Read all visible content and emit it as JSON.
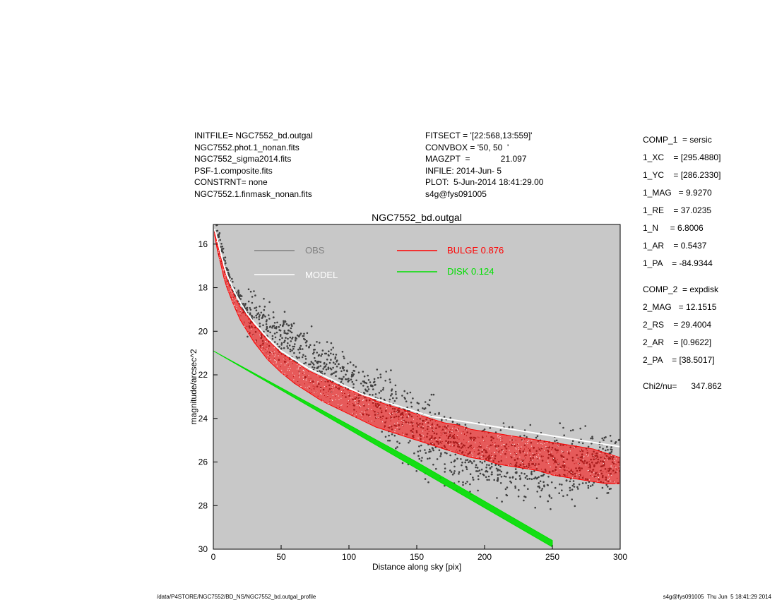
{
  "header_left": [
    "INITFILE= NGC7552_bd.outgal",
    "NGC7552.phot.1_nonan.fits",
    "NGC7552_sigma2014.fits",
    "PSF-1.composite.fits",
    "CONSTRNT= none",
    "NGC7552.1.finmask_nonan.fits"
  ],
  "header_mid": [
    "FITSECT = '[22:568,13:559]'",
    "CONVBOX = '50, 50  '",
    "MAGZPT  =             21.097",
    "INFILE: 2014-Jun- 5",
    "PLOT:  5-Jun-2014 18:41:29.00",
    "s4g@fys091005"
  ],
  "components": [
    "COMP_1  = sersic",
    "1_XC    = [295.4880]",
    "1_YC    = [286.2330]",
    "1_MAG   = 9.9270",
    "1_RE    = 37.0235",
    "1_N     = 6.8006",
    "1_AR    = 0.5437",
    "1_PA    = -84.9344",
    "COMP_2  = expdisk",
    "2_MAG   = 12.1515",
    "2_RS    = 29.4004",
    "2_AR    = [0.9622]",
    "2_PA    = [38.5017]",
    "Chi2/nu=      347.862"
  ],
  "footer_left": "/data/P4STORE/NGC7552/BD_NS/NGC7552_bd.outgal_profile",
  "footer_right": "s4g@fys091005  Thu Jun  5 18:41:29 2014",
  "chart_data": {
    "type": "scatter",
    "title": "NGC7552_bd.outgal",
    "xlabel": "Distance along sky [pix]",
    "ylabel": "magnitude/arcsec^2",
    "xlim": [
      0,
      300
    ],
    "ylim": [
      30,
      15.1
    ],
    "y_inverted": true,
    "xticks": [
      0,
      50,
      100,
      150,
      200,
      250,
      300
    ],
    "yticks": [
      16,
      18,
      20,
      22,
      24,
      26,
      28,
      30
    ],
    "background": "#c8c8c8",
    "legend": [
      {
        "name": "OBS",
        "color": "#808080",
        "text_color": "#808080"
      },
      {
        "name": "MODEL",
        "color": "#ffffff",
        "text_color": "#ffffff"
      },
      {
        "name": "BULGE  0.876",
        "color": "#ff0000",
        "text_color": "#ff0000"
      },
      {
        "name": "DISK  0.124",
        "color": "#00e000",
        "text_color": "#00e000"
      }
    ],
    "series": [
      {
        "name": "OBS",
        "color": "#404040",
        "x": [
          1,
          3,
          5,
          8,
          10,
          15,
          20,
          25,
          30,
          40,
          50,
          60,
          70,
          80,
          90,
          100,
          110,
          120,
          130,
          140,
          150,
          160,
          170,
          180,
          190,
          200,
          210,
          220,
          230,
          240,
          250,
          260,
          270,
          280,
          290,
          300
        ],
        "y": [
          15.2,
          15.4,
          15.9,
          16.8,
          17.3,
          18.0,
          18.6,
          19.0,
          19.4,
          19.8,
          20.2,
          20.6,
          21.0,
          21.4,
          21.8,
          22.2,
          22.6,
          23.0,
          23.5,
          24.0,
          24.5,
          24.9,
          25.2,
          25.5,
          25.7,
          25.9,
          26.0,
          26.1,
          26.2,
          26.3,
          26.3,
          26.3,
          26.2,
          26.1,
          25.9,
          25.8
        ]
      },
      {
        "name": "MODEL",
        "color": "#ffffff",
        "x": [
          1,
          3,
          5,
          8,
          10,
          15,
          20,
          25,
          30,
          40,
          50,
          60,
          70,
          80,
          90,
          100,
          110,
          120,
          130,
          140,
          150,
          160,
          170,
          180,
          190,
          200,
          210,
          220,
          230,
          240,
          250,
          260,
          270,
          280,
          290,
          300
        ],
        "y": [
          15.3,
          15.8,
          16.3,
          17.0,
          17.4,
          18.1,
          18.7,
          19.2,
          19.6,
          20.3,
          20.9,
          21.3,
          21.7,
          22.0,
          22.3,
          22.6,
          22.9,
          23.1,
          23.3,
          23.5,
          23.7,
          23.9,
          24.0,
          24.1,
          24.2,
          24.3,
          24.4,
          24.5,
          24.6,
          24.7,
          24.8,
          24.9,
          25.0,
          25.1,
          25.2,
          25.3
        ]
      },
      {
        "name": "BULGE  0.876",
        "color": "#ff0000",
        "x": [
          1,
          3,
          5,
          8,
          10,
          15,
          20,
          25,
          30,
          40,
          50,
          60,
          70,
          80,
          90,
          100,
          110,
          120,
          130,
          140,
          150,
          160,
          170,
          180,
          190,
          200,
          210,
          220,
          230,
          240,
          250,
          260,
          270,
          280,
          290,
          300
        ],
        "y_upper": [
          15.4,
          16.0,
          16.5,
          17.2,
          17.6,
          18.3,
          18.9,
          19.3,
          19.7,
          20.4,
          21.0,
          21.4,
          21.8,
          22.1,
          22.4,
          22.7,
          22.9,
          23.2,
          23.4,
          23.6,
          23.8,
          24.0,
          24.2,
          24.3,
          24.5,
          24.6,
          24.7,
          24.8,
          24.9,
          25.0,
          25.1,
          25.2,
          25.3,
          25.4,
          25.6,
          25.8
        ],
        "y_lower": [
          15.6,
          16.3,
          16.8,
          17.6,
          18.0,
          18.8,
          19.5,
          20.0,
          20.5,
          21.3,
          21.9,
          22.4,
          22.8,
          23.2,
          23.5,
          23.8,
          24.1,
          24.4,
          24.6,
          24.8,
          25.0,
          25.2,
          25.4,
          25.6,
          25.8,
          25.9,
          26.1,
          26.2,
          26.3,
          26.4,
          26.6,
          26.7,
          26.8,
          26.9,
          27.0,
          27.0
        ]
      },
      {
        "name": "DISK  0.124",
        "color": "#00e000",
        "x": [
          0,
          50,
          100,
          150,
          200,
          250
        ],
        "y_upper": [
          20.9,
          22.6,
          24.3,
          26.0,
          27.8,
          29.6
        ],
        "y_lower": [
          20.9,
          22.7,
          24.5,
          26.3,
          28.1,
          29.9
        ]
      }
    ]
  }
}
